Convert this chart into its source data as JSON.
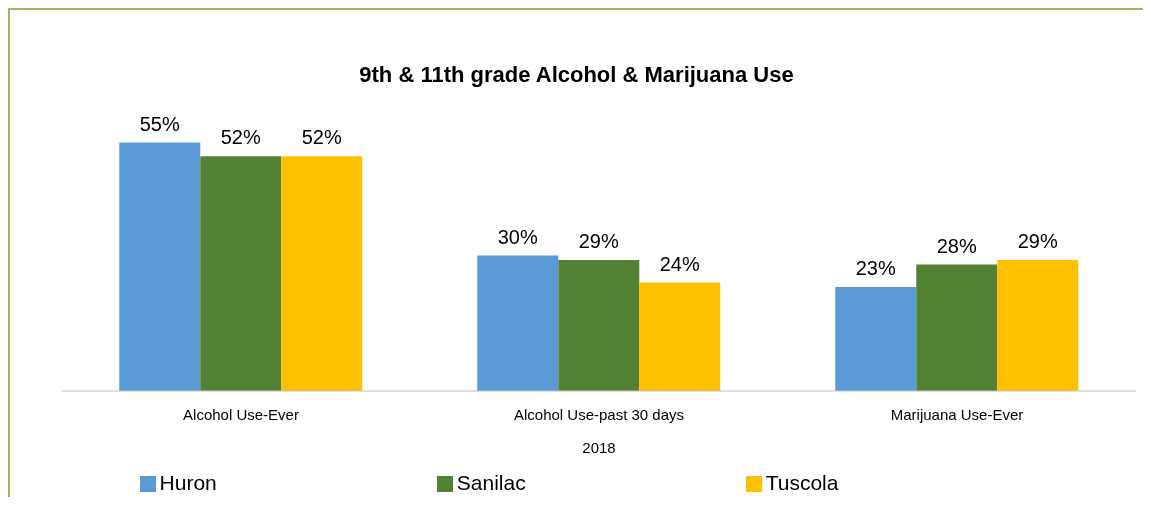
{
  "chart_data": {
    "type": "bar",
    "title": "9th & 11th grade Alcohol & Marijuana Use",
    "xlabel": "2018",
    "categories": [
      "Alcohol Use-Ever",
      "Alcohol Use-past 30 days",
      "Marijuana Use-Ever"
    ],
    "series": [
      {
        "name": "Huron",
        "color": "#5b9bd5",
        "values": [
          55,
          30,
          23
        ],
        "value_labels": [
          "55%",
          "30%",
          "23%"
        ]
      },
      {
        "name": "Sanilac",
        "color": "#548235",
        "values": [
          52,
          29,
          28
        ],
        "value_labels": [
          "52%",
          "29%",
          "28%"
        ]
      },
      {
        "name": "Tuscola",
        "color": "#ffc000",
        "values": [
          52,
          24,
          29
        ],
        "value_labels": [
          "52%",
          "24%",
          "29%"
        ]
      }
    ],
    "grid": false,
    "legend": "bottom"
  }
}
